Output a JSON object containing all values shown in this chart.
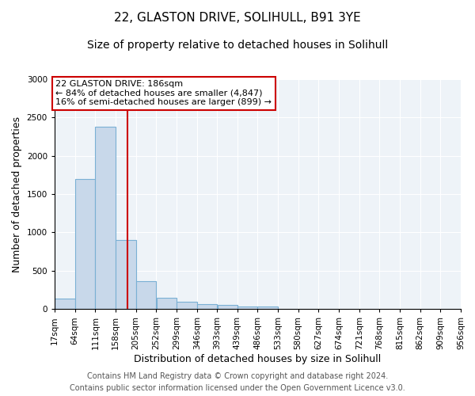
{
  "title_line1": "22, GLASTON DRIVE, SOLIHULL, B91 3YE",
  "title_line2": "Size of property relative to detached houses in Solihull",
  "xlabel": "Distribution of detached houses by size in Solihull",
  "ylabel": "Number of detached properties",
  "bar_color": "#c8d8ea",
  "bar_edge_color": "#7ab0d4",
  "background_color": "#eef3f8",
  "grid_color": "white",
  "bin_edges": [
    17,
    64,
    111,
    158,
    205,
    252,
    299,
    346,
    393,
    439,
    486,
    533,
    580,
    627,
    674,
    721,
    768,
    815,
    862,
    909,
    956
  ],
  "bar_heights": [
    130,
    1700,
    2380,
    900,
    360,
    150,
    90,
    60,
    50,
    30,
    30,
    0,
    0,
    0,
    0,
    0,
    0,
    0,
    0,
    0
  ],
  "property_size": 186,
  "red_line_color": "#cc0000",
  "annotation_text": "22 GLASTON DRIVE: 186sqm\n← 84% of detached houses are smaller (4,847)\n16% of semi-detached houses are larger (899) →",
  "annotation_box_color": "white",
  "annotation_box_edge_color": "#cc0000",
  "ylim": [
    0,
    3000
  ],
  "yticks": [
    0,
    500,
    1000,
    1500,
    2000,
    2500,
    3000
  ],
  "footer_line1": "Contains HM Land Registry data © Crown copyright and database right 2024.",
  "footer_line2": "Contains public sector information licensed under the Open Government Licence v3.0.",
  "title_fontsize": 11,
  "subtitle_fontsize": 10,
  "axis_label_fontsize": 9,
  "tick_fontsize": 7.5,
  "annotation_fontsize": 8,
  "footer_fontsize": 7
}
